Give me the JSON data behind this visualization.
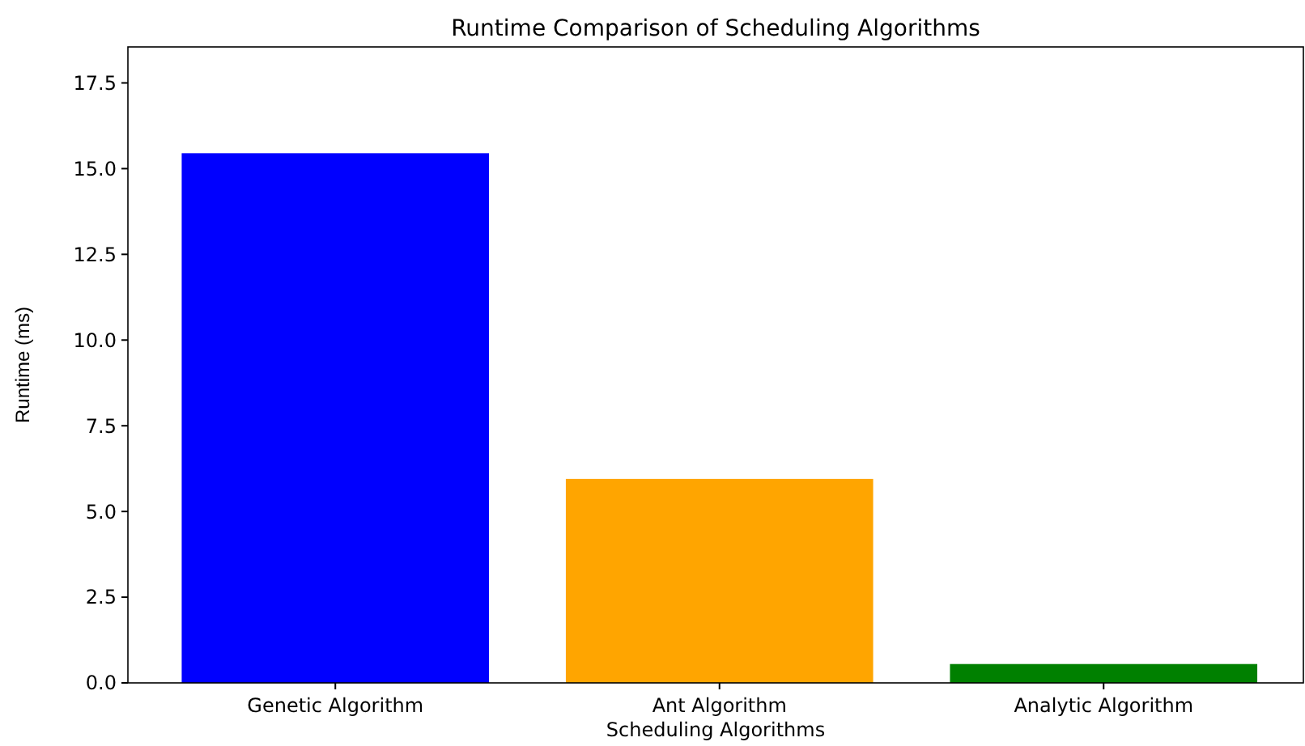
{
  "chart_data": {
    "type": "bar",
    "title": "Runtime Comparison of Scheduling Algorithms",
    "xlabel": "Scheduling Algorithms",
    "ylabel": "Runtime (ms)",
    "categories": [
      "Genetic Algorithm",
      "Ant Algorithm",
      "Analytic Algorithm"
    ],
    "values": [
      15.45,
      5.95,
      0.55
    ],
    "colors": [
      "#0000ff",
      "#ffa500",
      "#008000"
    ],
    "ylim": [
      0,
      18.55
    ],
    "yticks": [
      {
        "value": 0,
        "label": "0.0"
      },
      {
        "value": 2.5,
        "label": "2.5"
      },
      {
        "value": 5,
        "label": "5.0"
      },
      {
        "value": 7.5,
        "label": "7.5"
      },
      {
        "value": 10,
        "label": "10.0"
      },
      {
        "value": 12.5,
        "label": "12.5"
      },
      {
        "value": 15,
        "label": "15.0"
      },
      {
        "value": 17.5,
        "label": "17.5"
      }
    ],
    "grid": false
  }
}
